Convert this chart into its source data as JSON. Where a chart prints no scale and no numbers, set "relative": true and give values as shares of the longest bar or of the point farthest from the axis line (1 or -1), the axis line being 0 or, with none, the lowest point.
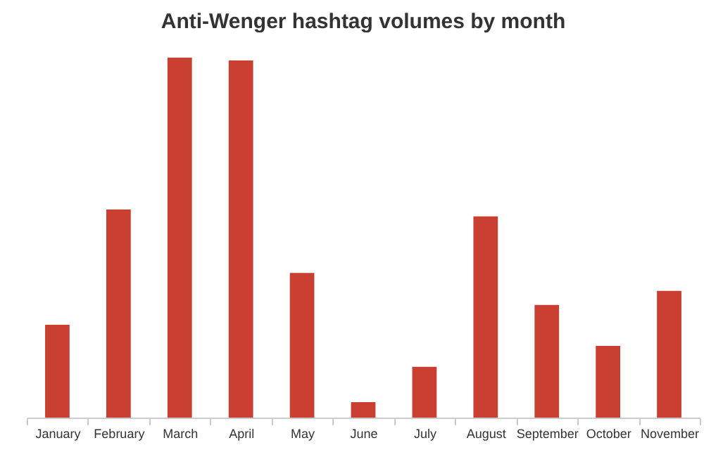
{
  "chart_data": {
    "type": "bar",
    "title": "Anti-Wenger hashtag volumes by month",
    "categories": [
      "January",
      "February",
      "March",
      "April",
      "May",
      "June",
      "July",
      "August",
      "September",
      "October",
      "November"
    ],
    "values": [
      0.258,
      0.578,
      1,
      0.992,
      0.402,
      0.043,
      0.141,
      0.559,
      0.313,
      0.199,
      0.352
    ],
    "color": "#c94032",
    "relative": true
  }
}
